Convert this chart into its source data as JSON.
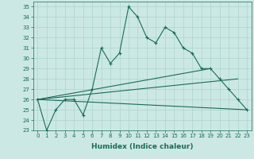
{
  "title": "",
  "xlabel": "Humidex (Indice chaleur)",
  "ylabel": "",
  "xlim": [
    -0.5,
    23.5
  ],
  "ylim": [
    23,
    35.5
  ],
  "xticks": [
    0,
    1,
    2,
    3,
    4,
    5,
    6,
    7,
    8,
    9,
    10,
    11,
    12,
    13,
    14,
    15,
    16,
    17,
    18,
    19,
    20,
    21,
    22,
    23
  ],
  "yticks": [
    23,
    24,
    25,
    26,
    27,
    28,
    29,
    30,
    31,
    32,
    33,
    34,
    35
  ],
  "bg_color": "#cce8e4",
  "grid_color": "#aad4cc",
  "line_color": "#1a6b5a",
  "line1_x": [
    0,
    1,
    2,
    3,
    4,
    5,
    6,
    7,
    8,
    9,
    10,
    11,
    12,
    13,
    14,
    15,
    16,
    17,
    18,
    19,
    20,
    21,
    22,
    23
  ],
  "line1_y": [
    26,
    23,
    25,
    26,
    26,
    24.5,
    27,
    31,
    29.5,
    30.5,
    35,
    34,
    32,
    31.5,
    33,
    32.5,
    31,
    30.5,
    29,
    29,
    28,
    27,
    26,
    25
  ],
  "line2_x": [
    0,
    23
  ],
  "line2_y": [
    26,
    25
  ],
  "line3_x": [
    0,
    19
  ],
  "line3_y": [
    26,
    29
  ],
  "line4_x": [
    0,
    22
  ],
  "line4_y": [
    26,
    28
  ],
  "tick_fontsize": 5.0,
  "xlabel_fontsize": 6.5,
  "lw": 0.8
}
